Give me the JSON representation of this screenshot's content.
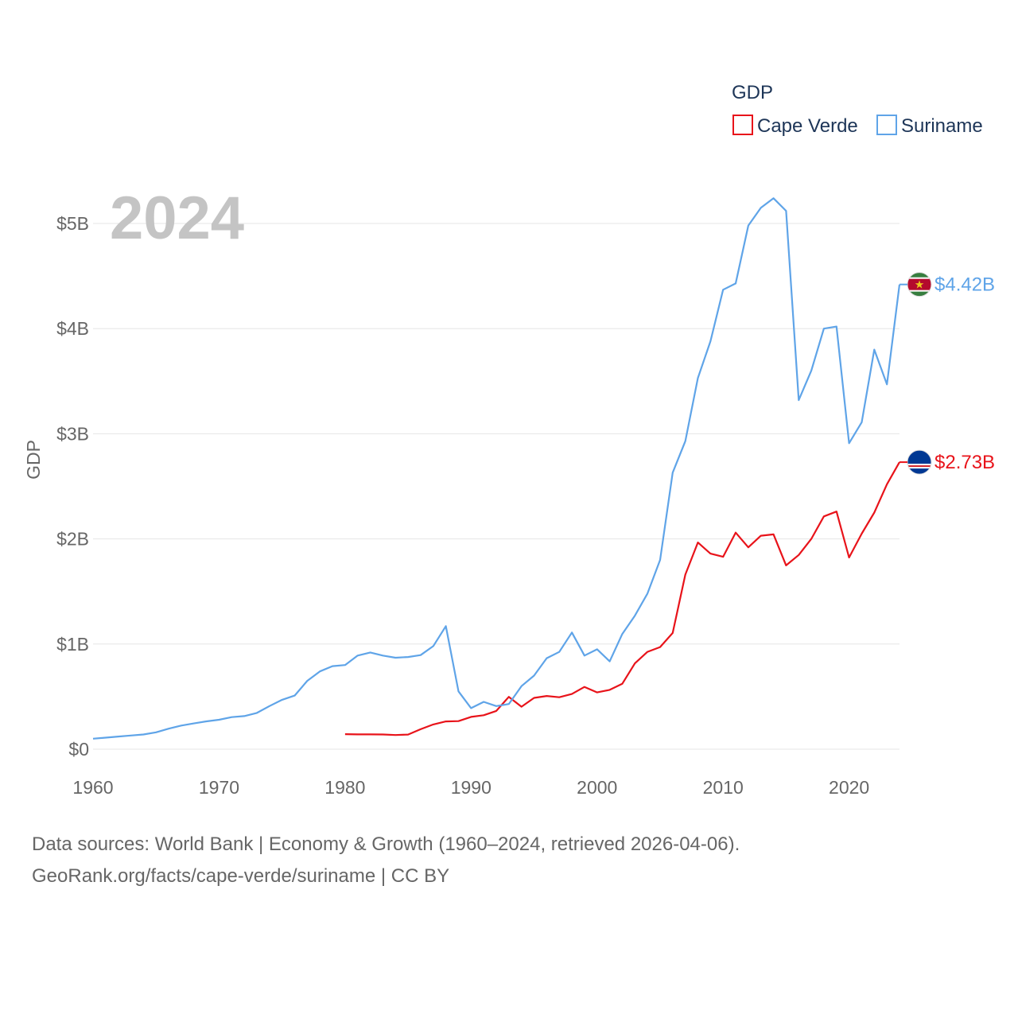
{
  "chart_data": {
    "type": "line",
    "year_label": "2024",
    "ylabel": "GDP",
    "xlim": [
      1960,
      2024
    ],
    "ylim": [
      0,
      5000000000
    ],
    "x_ticks": [
      1960,
      1970,
      1980,
      1990,
      2000,
      2010,
      2020
    ],
    "x_tick_labels": [
      "1960",
      "1970",
      "1980",
      "1990",
      "2000",
      "2010",
      "2020"
    ],
    "y_ticks": [
      0,
      1000000000,
      2000000000,
      3000000000,
      4000000000,
      5000000000
    ],
    "y_tick_labels": [
      "$0",
      "$1B",
      "$2B",
      "$3B",
      "$4B",
      "$5B"
    ],
    "legend": {
      "title": "GDP",
      "placement": "top-right"
    },
    "series": [
      {
        "name": "Cape Verde",
        "color": "#e8131a",
        "end_label": "$2.73B",
        "flag": "cape-verde-flag",
        "x": [
          1980,
          1981,
          1982,
          1983,
          1984,
          1985,
          1986,
          1987,
          1988,
          1989,
          1990,
          1991,
          1992,
          1993,
          1994,
          1995,
          1996,
          1997,
          1998,
          1999,
          2000,
          2001,
          2002,
          2003,
          2004,
          2005,
          2006,
          2007,
          2008,
          2009,
          2010,
          2011,
          2012,
          2013,
          2014,
          2015,
          2016,
          2017,
          2018,
          2019,
          2020,
          2021,
          2022,
          2023,
          2024
        ],
        "y": [
          0.143,
          0.141,
          0.141,
          0.14,
          0.135,
          0.139,
          0.19,
          0.235,
          0.264,
          0.267,
          0.307,
          0.323,
          0.364,
          0.498,
          0.404,
          0.488,
          0.506,
          0.494,
          0.525,
          0.592,
          0.54,
          0.564,
          0.622,
          0.816,
          0.926,
          0.971,
          1.105,
          1.66,
          1.966,
          1.86,
          1.83,
          2.06,
          1.92,
          2.03,
          2.043,
          1.748,
          1.847,
          2.0,
          2.214,
          2.26,
          1.823,
          2.05,
          2.25,
          2.52,
          2.73
        ]
      },
      {
        "name": "Suriname",
        "color": "#5fa4e8",
        "end_label": "$4.42B",
        "flag": "suriname-flag",
        "x": [
          1960,
          1961,
          1962,
          1963,
          1964,
          1965,
          1966,
          1967,
          1968,
          1969,
          1970,
          1971,
          1972,
          1973,
          1974,
          1975,
          1976,
          1977,
          1978,
          1979,
          1980,
          1981,
          1982,
          1983,
          1984,
          1985,
          1986,
          1987,
          1988,
          1989,
          1990,
          1991,
          1992,
          1993,
          1994,
          1995,
          1996,
          1997,
          1998,
          1999,
          2000,
          2001,
          2002,
          2003,
          2004,
          2005,
          2006,
          2007,
          2008,
          2009,
          2010,
          2011,
          2012,
          2013,
          2014,
          2015,
          2016,
          2017,
          2018,
          2019,
          2020,
          2021,
          2022,
          2023,
          2024
        ],
        "y": [
          0.1,
          0.11,
          0.12,
          0.13,
          0.14,
          0.16,
          0.195,
          0.225,
          0.245,
          0.265,
          0.28,
          0.305,
          0.315,
          0.345,
          0.41,
          0.47,
          0.51,
          0.65,
          0.74,
          0.79,
          0.8,
          0.89,
          0.92,
          0.89,
          0.87,
          0.877,
          0.895,
          0.98,
          1.17,
          0.55,
          0.39,
          0.45,
          0.41,
          0.43,
          0.6,
          0.7,
          0.865,
          0.925,
          1.11,
          0.89,
          0.95,
          0.835,
          1.095,
          1.27,
          1.48,
          1.8,
          2.63,
          2.93,
          3.53,
          3.88,
          4.37,
          4.43,
          4.98,
          5.15,
          5.24,
          5.12,
          3.32,
          3.6,
          4.0,
          4.02,
          2.91,
          3.11,
          3.8,
          3.47,
          4.42
        ]
      }
    ]
  },
  "footer": {
    "line1": "Data sources: World Bank | Economy & Growth (1960–2024, retrieved 2026-04-06).",
    "line2": "GeoRank.org/facts/cape-verde/suriname | CC BY"
  }
}
